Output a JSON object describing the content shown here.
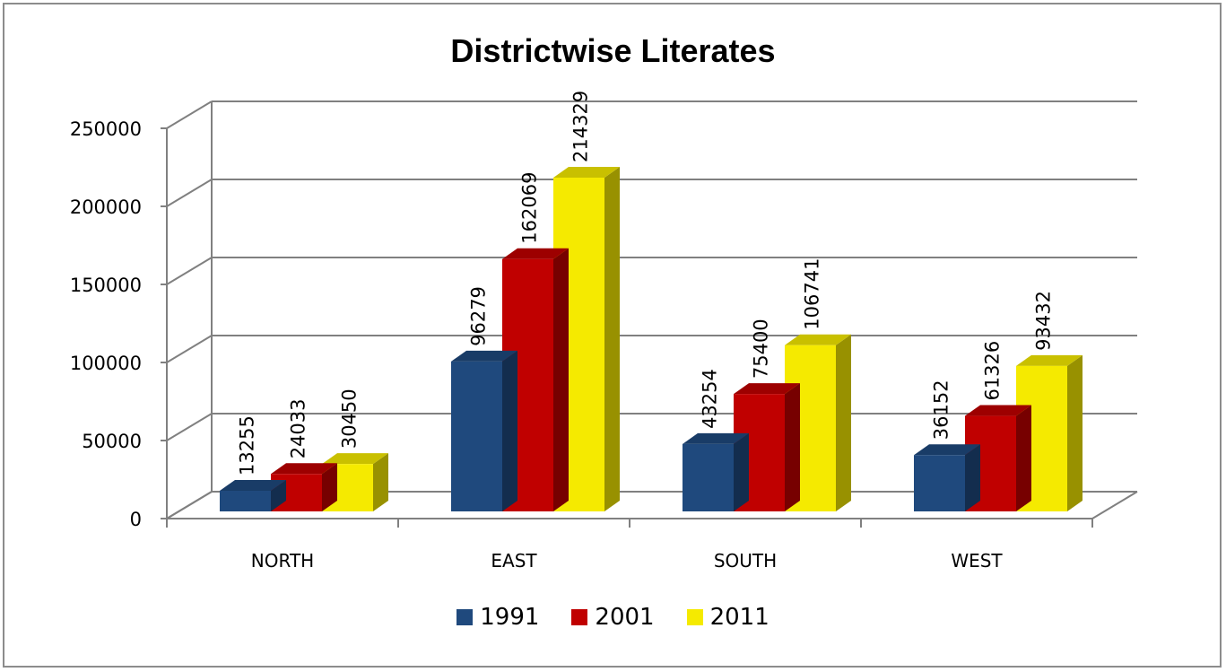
{
  "chart_data": {
    "type": "bar",
    "title": "Districtwise Literates",
    "categories": [
      "NORTH",
      "EAST",
      "SOUTH",
      "WEST"
    ],
    "series": [
      {
        "name": "1991",
        "values": [
          13255,
          96279,
          43254,
          36152
        ],
        "color": "#1f497d"
      },
      {
        "name": "2001",
        "values": [
          24033,
          162069,
          75400,
          61326
        ],
        "color": "#c00000"
      },
      {
        "name": "2011",
        "values": [
          30450,
          214329,
          106741,
          93432
        ],
        "color": "#f5ea00"
      }
    ],
    "y_ticks": [
      "0",
      "50000",
      "100000",
      "150000",
      "200000",
      "250000"
    ],
    "ylim": [
      0,
      250000
    ],
    "grid": true,
    "legend_position": "bottom",
    "style": "3d-clustered-column"
  }
}
